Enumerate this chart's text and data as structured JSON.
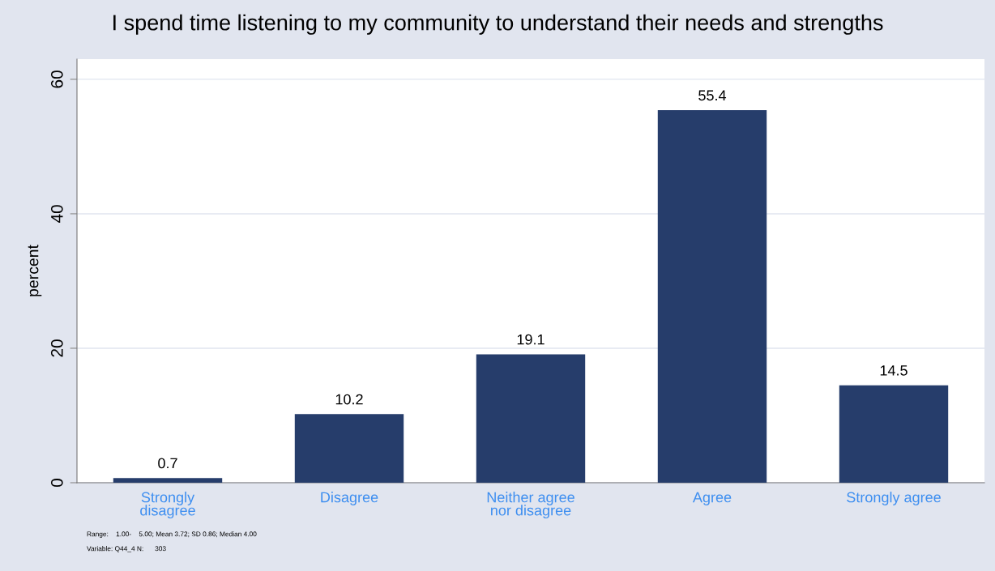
{
  "chart_data": {
    "type": "bar",
    "title": "I spend time listening to my community to understand their needs and strengths",
    "ylabel": "percent",
    "categories": [
      "Strongly\ndisagree",
      "Disagree",
      "Neither agree\nnor disagree",
      "Agree",
      "Strongly agree"
    ],
    "values": [
      0.7,
      10.2,
      19.1,
      55.4,
      14.5
    ],
    "color": "#263d6b",
    "ylim": [
      0,
      63
    ],
    "yticks": [
      0,
      20,
      40,
      60
    ],
    "grid": "y",
    "data_labels": true,
    "annotations": [
      "Range:    1.00-    5.00; Mean 3.72; SD 0.86; Median 4.00",
      "Variable: Q44_4 N:      303"
    ]
  }
}
